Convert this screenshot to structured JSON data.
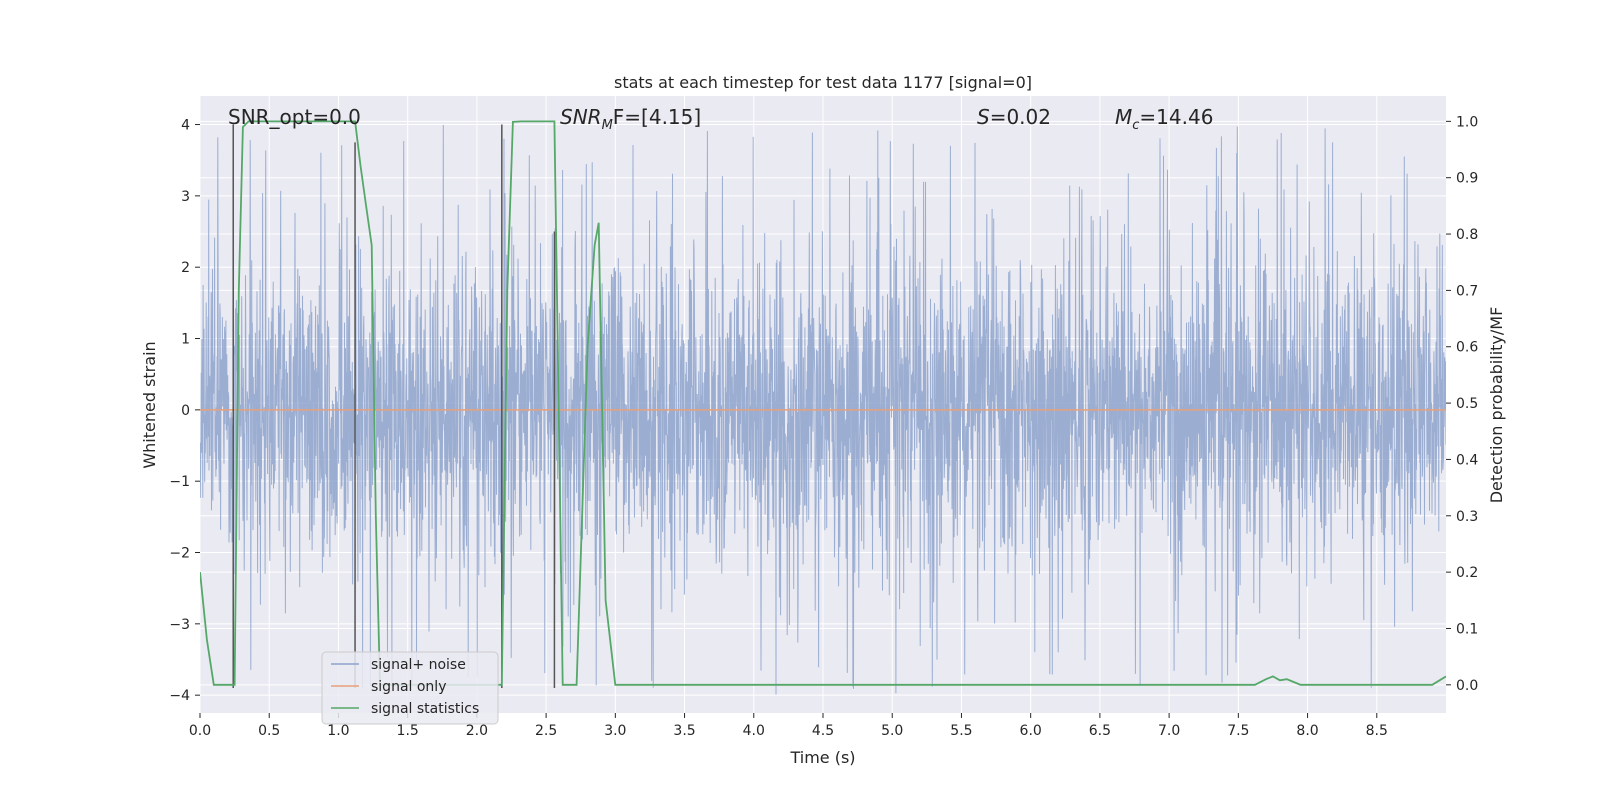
{
  "chart_data": {
    "type": "line",
    "title": "stats at each timestep for test data 1177 [signal=0]",
    "xlabel": "Time (s)",
    "ylabel": "Whitened strain",
    "ylabel_right": "Detection probability/MF",
    "xlim": [
      0.0,
      9.0
    ],
    "ylim": [
      -4.25,
      4.4
    ],
    "ylim_right": [
      -0.05,
      1.045
    ],
    "xticks": [
      "0.0",
      "0.5",
      "1.0",
      "1.5",
      "2.0",
      "2.5",
      "3.0",
      "3.5",
      "4.0",
      "4.5",
      "5.0",
      "5.5",
      "6.0",
      "6.5",
      "7.0",
      "7.5",
      "8.0",
      "8.5"
    ],
    "yticks": [
      "4",
      "3",
      "2",
      "1",
      "0",
      "−1",
      "−2",
      "−3",
      "−4"
    ],
    "yticks_right": [
      "1.0",
      "0.9",
      "0.8",
      "0.7",
      "0.6",
      "0.5",
      "0.4",
      "0.3",
      "0.2",
      "0.1",
      "0.0"
    ],
    "annotations": {
      "snr_opt": "SNR_opt=0.0",
      "snr_mf_prefix": "SNR",
      "snr_mf_sub": "M",
      "snr_mf_suffix": "F=[4.15]",
      "s_sym": "S",
      "s_val": "=0.02",
      "mc_sym": "M",
      "mc_sub": "c",
      "mc_val": "=14.46"
    },
    "legend": {
      "position": "lower-left",
      "entries": [
        "signal+ noise",
        "signal only",
        "signal statistics"
      ]
    },
    "colors": {
      "noise": "#8da3cc",
      "signal_only": "#e8a07a",
      "statistics": "#55a868",
      "vlines": "#555555",
      "background": "#eaeaf2",
      "grid": "#ffffff"
    },
    "series": [
      {
        "name": "signal+ noise",
        "note": "dense whitened noise trace, ~±1.6 typical with spikes to about ±4",
        "amplitude_typical": 1.6,
        "amplitude_max": 4.0,
        "x_range": [
          0.0,
          9.0
        ]
      },
      {
        "name": "signal only",
        "x": [
          0.0,
          9.0
        ],
        "values": [
          0.0,
          0.0
        ]
      },
      {
        "name": "signal statistics",
        "axis": "right",
        "x": [
          0.0,
          0.05,
          0.1,
          0.2,
          0.25,
          0.28,
          0.31,
          0.35,
          0.5,
          0.7,
          0.9,
          1.05,
          1.12,
          1.16,
          1.2,
          1.24,
          1.27,
          1.3,
          1.4,
          1.6,
          1.8,
          2.0,
          2.18,
          2.22,
          2.26,
          2.32,
          2.4,
          2.5,
          2.56,
          2.59,
          2.62,
          2.65,
          2.72,
          2.8,
          2.85,
          2.88,
          2.93,
          3.0,
          3.5,
          4.0,
          5.0,
          6.0,
          7.0,
          7.5,
          7.62,
          7.7,
          7.75,
          7.8,
          7.85,
          7.9,
          7.95,
          8.0,
          8.5,
          8.9,
          9.0
        ],
        "values": [
          0.2,
          0.08,
          0.0,
          0.0,
          0.0,
          0.7,
          0.99,
          1.0,
          1.0,
          1.0,
          1.0,
          1.0,
          1.0,
          0.92,
          0.85,
          0.78,
          0.3,
          0.0,
          0.0,
          0.0,
          0.0,
          0.0,
          0.0,
          0.7,
          0.999,
          1.0,
          1.0,
          1.0,
          1.0,
          0.5,
          0.0,
          0.0,
          0.0,
          0.6,
          0.78,
          0.82,
          0.15,
          0.0,
          0.0,
          0.0,
          0.0,
          0.0,
          0.0,
          0.0,
          0.0,
          0.01,
          0.015,
          0.008,
          0.01,
          0.005,
          0.0,
          0.0,
          0.0,
          0.0,
          0.015
        ]
      }
    ],
    "vlines": [
      {
        "x": 0.24,
        "ymin": -3.9,
        "ymax": 4.0
      },
      {
        "x": 1.12,
        "ymin": -3.9,
        "ymax": 3.75
      },
      {
        "x": 2.18,
        "ymin": -3.9,
        "ymax": 4.0
      },
      {
        "x": 2.56,
        "ymin": -3.9,
        "ymax": 2.5
      }
    ]
  }
}
